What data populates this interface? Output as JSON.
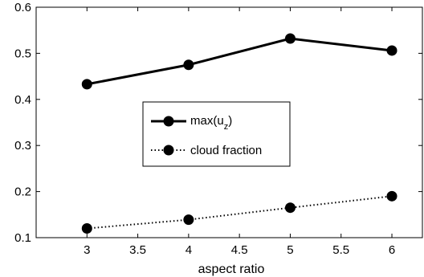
{
  "chart_data": {
    "type": "line",
    "title": "",
    "xlabel": "aspect ratio",
    "ylabel": "",
    "x": [
      3,
      4,
      5,
      6
    ],
    "xlim": [
      2.5,
      6.3
    ],
    "ylim": [
      0.1,
      0.6
    ],
    "xticks": [
      "3",
      "3.5",
      "4",
      "4.5",
      "5",
      "5.5",
      "6"
    ],
    "yticks": [
      "0.1",
      "0.2",
      "0.3",
      "0.4",
      "0.5",
      "0.6"
    ],
    "grid": false,
    "legend_position": "center",
    "series": [
      {
        "name": "max(u",
        "name_subscript": "z",
        "name_suffix": ")",
        "values": [
          0.433,
          0.475,
          0.532,
          0.506
        ],
        "style": "solid",
        "color": "#000000"
      },
      {
        "name": "cloud fraction",
        "values": [
          0.12,
          0.139,
          0.165,
          0.19
        ],
        "style": "dotted",
        "color": "#000000"
      }
    ]
  }
}
